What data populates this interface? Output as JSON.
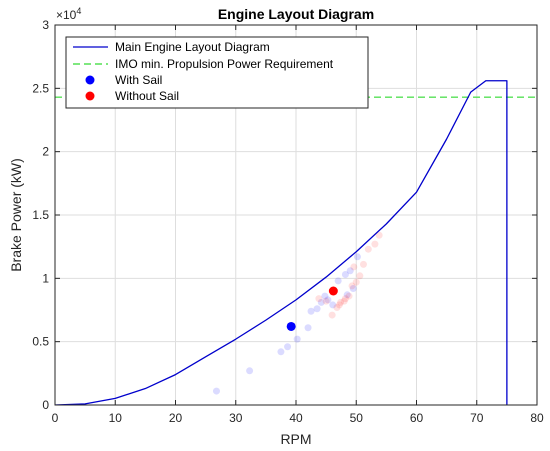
{
  "chart_data": {
    "type": "line",
    "title": "Engine Layout Diagram",
    "xlabel": "RPM",
    "ylabel": "Brake Power (kW)",
    "y_exponent_label": "×10",
    "y_exponent_power": "4",
    "xlim": [
      0,
      80
    ],
    "ylim": [
      0,
      30000
    ],
    "x_ticks": [
      0,
      10,
      20,
      30,
      40,
      50,
      60,
      70,
      80
    ],
    "y_ticks": [
      0,
      5000,
      10000,
      15000,
      20000,
      25000,
      30000
    ],
    "y_tick_labels": [
      "0",
      "0.5",
      "1",
      "1.5",
      "2",
      "2.5",
      "3"
    ],
    "grid": true,
    "legend_position": "top-left",
    "colors": {
      "main": "#0000cc",
      "imo": "#55e055",
      "with_sail": "#0000ff",
      "without_sail": "#ff0000"
    },
    "series": [
      {
        "name": "Main Engine Layout Diagram",
        "kind": "line",
        "points": [
          [
            0,
            0
          ],
          [
            5,
            90
          ],
          [
            10,
            520
          ],
          [
            15,
            1300
          ],
          [
            20,
            2400
          ],
          [
            25,
            3800
          ],
          [
            30,
            5200
          ],
          [
            35,
            6700
          ],
          [
            40,
            8300
          ],
          [
            45,
            10100
          ],
          [
            50,
            12100
          ],
          [
            55,
            14300
          ],
          [
            60,
            16800
          ],
          [
            65,
            21000
          ],
          [
            69,
            24700
          ],
          [
            71.5,
            25600
          ],
          [
            75,
            25600
          ],
          [
            75,
            0
          ]
        ]
      },
      {
        "name": "IMO min. Propulsion Power Requirement",
        "kind": "dashed-line",
        "y": 24300
      },
      {
        "name": "With Sail",
        "kind": "scatter",
        "points": [
          [
            39.2,
            6200
          ]
        ]
      },
      {
        "name": "Without Sail",
        "kind": "scatter",
        "points": [
          [
            46.2,
            9000
          ]
        ]
      }
    ],
    "faded_points_blue": [
      [
        26.8,
        1100
      ],
      [
        32.3,
        2700
      ],
      [
        37.5,
        4200
      ],
      [
        38.6,
        4600
      ],
      [
        40.2,
        5200
      ],
      [
        42.0,
        6100
      ],
      [
        42.5,
        7400
      ],
      [
        43.5,
        7600
      ],
      [
        44.2,
        8100
      ],
      [
        44.8,
        8600
      ],
      [
        45.3,
        8300
      ],
      [
        46.1,
        7900
      ],
      [
        47.0,
        9800
      ],
      [
        48.2,
        10300
      ],
      [
        49.0,
        10600
      ],
      [
        50.2,
        11700
      ],
      [
        48.5,
        8700
      ],
      [
        49.5,
        9200
      ]
    ],
    "faded_points_red": [
      [
        43.8,
        8400
      ],
      [
        45.0,
        8200
      ],
      [
        46.0,
        7100
      ],
      [
        46.8,
        7700
      ],
      [
        47.4,
        8100
      ],
      [
        48.0,
        8200
      ],
      [
        48.8,
        8600
      ],
      [
        49.3,
        9400
      ],
      [
        50.0,
        9700
      ],
      [
        50.6,
        10200
      ],
      [
        49.6,
        10900
      ],
      [
        51.2,
        11100
      ],
      [
        52.0,
        12300
      ],
      [
        53.1,
        12700
      ],
      [
        53.8,
        13400
      ],
      [
        47.2,
        7900
      ],
      [
        48.2,
        8400
      ]
    ]
  }
}
